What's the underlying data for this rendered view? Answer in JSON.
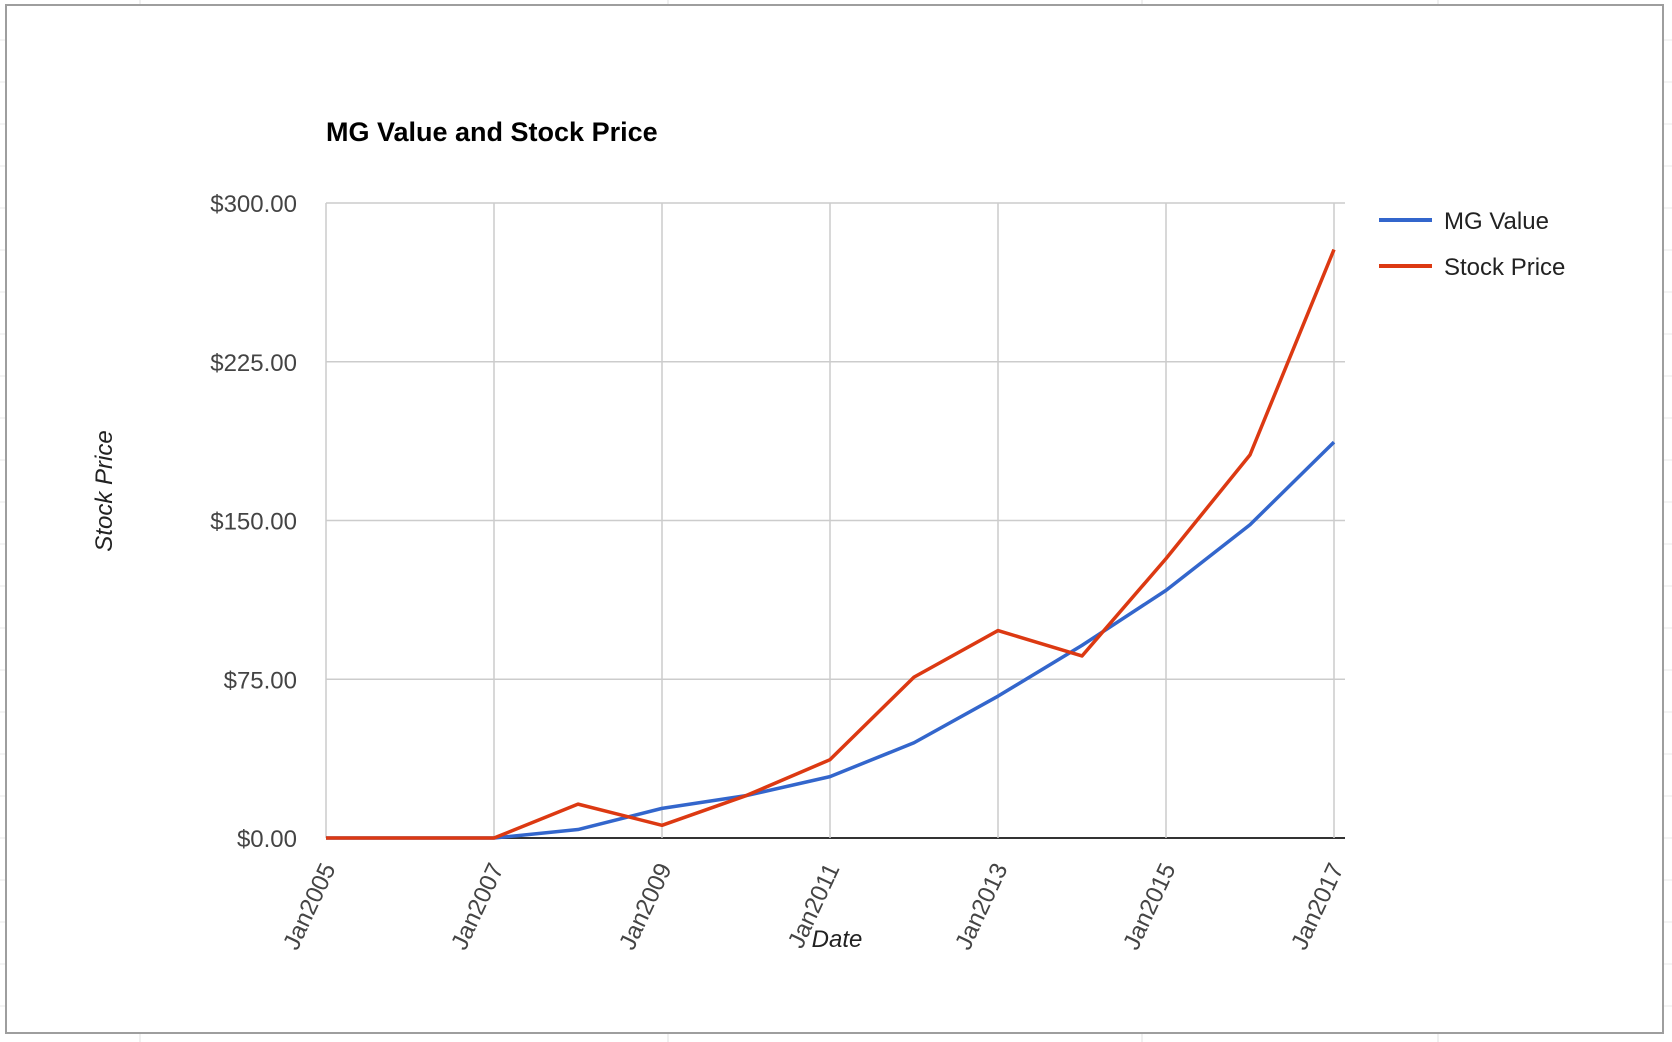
{
  "chart_data": {
    "type": "line",
    "title": "MG Value and Stock Price",
    "xlabel": "Date",
    "ylabel": "Stock Price",
    "x": [
      "Jan2005",
      "Jan2006",
      "Jan2007",
      "Jan2008",
      "Jan2009",
      "Jan2010",
      "Jan2011",
      "Jan2012",
      "Jan2013",
      "Jan2014",
      "Jan2015",
      "Jan2016",
      "Jan2017"
    ],
    "x_tick_labels": [
      "Jan2005",
      "Jan2007",
      "Jan2009",
      "Jan2011",
      "Jan2013",
      "Jan2015",
      "Jan2017"
    ],
    "y_tick_labels": [
      "$0.00",
      "$75.00",
      "$150.00",
      "$225.00",
      "$300.00"
    ],
    "ylim": [
      0,
      300
    ],
    "grid": true,
    "legend_position": "right",
    "series": [
      {
        "name": "MG Value",
        "color": "#3366cc",
        "values": [
          0,
          0,
          0,
          4,
          14,
          20,
          29,
          45,
          67,
          91,
          117,
          148,
          187
        ]
      },
      {
        "name": "Stock Price",
        "color": "#dc3912",
        "values": [
          0,
          0,
          0,
          16,
          6,
          20,
          37,
          76,
          98,
          86,
          132,
          181,
          278
        ]
      }
    ]
  }
}
